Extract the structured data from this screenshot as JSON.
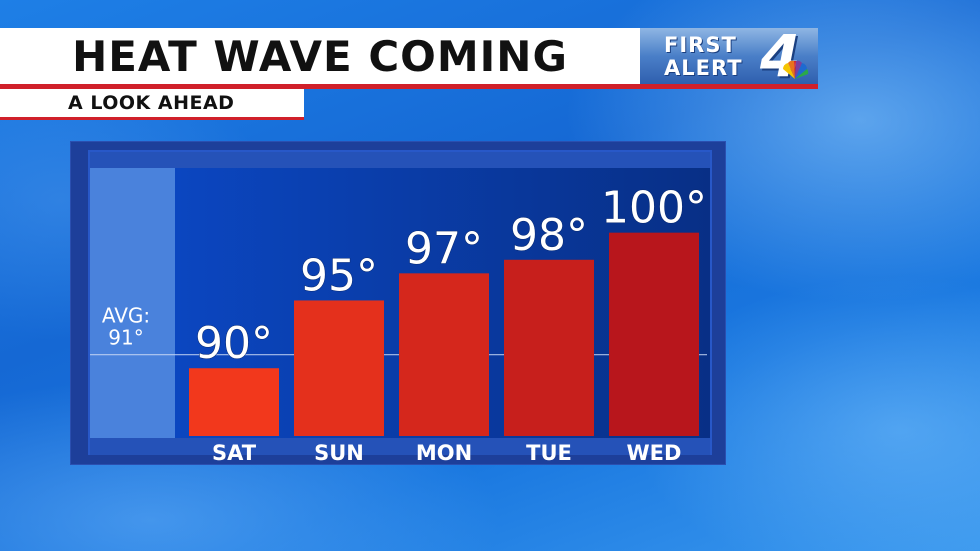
{
  "header": {
    "title": "HEAT WAVE COMING",
    "subtitle": "A LOOK AHEAD"
  },
  "logo": {
    "line1": "FIRST",
    "line2": "ALERT",
    "channel": "4"
  },
  "colors": {
    "accent_red": "#d0202a",
    "bar_light": "#f2381c",
    "bar_dark": "#b8161c",
    "plot_bg": "#0f3fae"
  },
  "chart_data": {
    "type": "bar",
    "categories": [
      "SAT",
      "SUN",
      "MON",
      "TUE",
      "WED"
    ],
    "values": [
      90,
      95,
      97,
      98,
      100
    ],
    "value_labels": [
      "90°",
      "95°",
      "97°",
      "98°",
      "100°"
    ],
    "reference_line": {
      "value": 91,
      "label_line1": "AVG:",
      "label_line2": "91°"
    },
    "ylim": [
      85,
      103
    ],
    "grid": false
  }
}
